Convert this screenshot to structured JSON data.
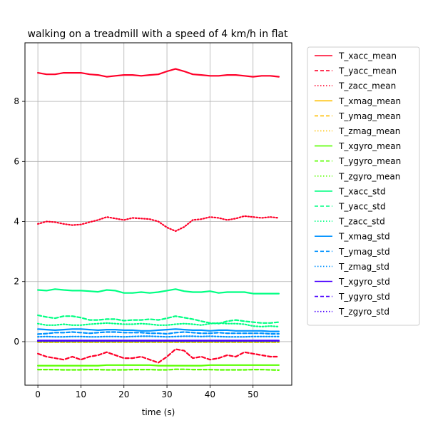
{
  "chart_data": {
    "type": "line",
    "title": "walking on a treadmill with a speed of 4 km/h in flat",
    "xlabel": "time (s)",
    "ylabel": "",
    "xlim": [
      -3,
      59
    ],
    "ylim": [
      -1.45,
      9.95
    ],
    "xticks": [
      0,
      10,
      20,
      30,
      40,
      50
    ],
    "yticks": [
      0,
      2,
      4,
      6,
      8
    ],
    "xtick_labels": [
      "0",
      "10",
      "20",
      "30",
      "40",
      "50"
    ],
    "ytick_labels": [
      "0",
      "2",
      "4",
      "6",
      "8"
    ],
    "grid": true,
    "legend_position": "outside-right",
    "x": [
      0,
      2,
      4,
      6,
      8,
      10,
      12,
      14,
      16,
      18,
      20,
      22,
      24,
      26,
      28,
      30,
      32,
      34,
      36,
      38,
      40,
      42,
      44,
      46,
      48,
      50,
      52,
      54,
      56
    ],
    "series": [
      {
        "name": "T_xacc_mean",
        "color": "#ff0029",
        "dash": "solid",
        "values": [
          8.95,
          8.9,
          8.9,
          8.95,
          8.95,
          8.95,
          8.9,
          8.88,
          8.82,
          8.85,
          8.88,
          8.88,
          8.85,
          8.88,
          8.9,
          9.0,
          9.08,
          9.0,
          8.9,
          8.88,
          8.85,
          8.85,
          8.88,
          8.88,
          8.85,
          8.82,
          8.85,
          8.85,
          8.82
        ]
      },
      {
        "name": "T_yacc_mean",
        "color": "#ff0029",
        "dash": "dashed",
        "values": [
          -0.4,
          -0.5,
          -0.55,
          -0.6,
          -0.5,
          -0.6,
          -0.5,
          -0.45,
          -0.35,
          -0.45,
          -0.55,
          -0.55,
          -0.5,
          -0.6,
          -0.7,
          -0.5,
          -0.25,
          -0.3,
          -0.55,
          -0.5,
          -0.6,
          -0.55,
          -0.45,
          -0.5,
          -0.35,
          -0.4,
          -0.45,
          -0.5,
          -0.5
        ]
      },
      {
        "name": "T_zacc_mean",
        "color": "#ff0029",
        "dash": "dotted",
        "values": [
          3.92,
          4.0,
          3.98,
          3.92,
          3.88,
          3.9,
          3.98,
          4.05,
          4.15,
          4.1,
          4.05,
          4.12,
          4.1,
          4.08,
          4.0,
          3.8,
          3.68,
          3.82,
          4.05,
          4.08,
          4.15,
          4.12,
          4.05,
          4.1,
          4.18,
          4.15,
          4.12,
          4.15,
          4.12
        ]
      },
      {
        "name": "T_xmag_mean",
        "color": "#ffbf00",
        "dash": "solid",
        "values": [
          0.0,
          0.0,
          0.0,
          0.0,
          0.0,
          0.0,
          0.0,
          0.0,
          0.0,
          0.0,
          0.0,
          0.0,
          0.0,
          0.0,
          0.0,
          0.0,
          0.0,
          0.0,
          0.0,
          0.0,
          0.0,
          0.0,
          0.0,
          0.0,
          0.0,
          0.0,
          0.0,
          0.0,
          0.0
        ]
      },
      {
        "name": "T_ymag_mean",
        "color": "#ffbf00",
        "dash": "dashed",
        "values": [
          -0.02,
          -0.02,
          -0.02,
          -0.02,
          -0.02,
          -0.02,
          -0.02,
          -0.02,
          -0.02,
          -0.02,
          -0.02,
          -0.02,
          -0.02,
          -0.02,
          -0.02,
          -0.02,
          -0.02,
          -0.02,
          -0.02,
          -0.02,
          -0.02,
          -0.02,
          -0.02,
          -0.02,
          -0.02,
          -0.02,
          -0.02,
          -0.02,
          -0.02
        ]
      },
      {
        "name": "T_zmag_mean",
        "color": "#ffbf00",
        "dash": "dotted",
        "values": [
          0.01,
          0.01,
          0.01,
          0.01,
          0.01,
          0.01,
          0.01,
          0.01,
          0.01,
          0.01,
          0.01,
          0.01,
          0.01,
          0.01,
          0.01,
          0.01,
          0.01,
          0.01,
          0.01,
          0.01,
          0.01,
          0.01,
          0.01,
          0.01,
          0.01,
          0.01,
          0.01,
          0.01,
          0.01
        ]
      },
      {
        "name": "T_xgyro_mean",
        "color": "#5aff00",
        "dash": "solid",
        "values": [
          -0.8,
          -0.8,
          -0.8,
          -0.8,
          -0.8,
          -0.8,
          -0.8,
          -0.8,
          -0.78,
          -0.78,
          -0.78,
          -0.78,
          -0.78,
          -0.78,
          -0.8,
          -0.8,
          -0.8,
          -0.8,
          -0.8,
          -0.8,
          -0.78,
          -0.78,
          -0.78,
          -0.78,
          -0.78,
          -0.78,
          -0.78,
          -0.78,
          -0.78
        ]
      },
      {
        "name": "T_ygyro_mean",
        "color": "#5aff00",
        "dash": "dashed",
        "values": [
          -0.93,
          -0.93,
          -0.93,
          -0.94,
          -0.94,
          -0.94,
          -0.93,
          -0.93,
          -0.94,
          -0.94,
          -0.94,
          -0.93,
          -0.93,
          -0.93,
          -0.94,
          -0.94,
          -0.92,
          -0.92,
          -0.93,
          -0.93,
          -0.93,
          -0.94,
          -0.94,
          -0.94,
          -0.94,
          -0.93,
          -0.93,
          -0.94,
          -0.95
        ]
      },
      {
        "name": "T_zgyro_mean",
        "color": "#5aff00",
        "dash": "dotted",
        "values": [
          0.0,
          0.0,
          0.0,
          0.0,
          0.0,
          0.0,
          0.0,
          0.0,
          0.0,
          0.0,
          0.0,
          0.0,
          0.0,
          0.0,
          0.0,
          0.0,
          0.0,
          0.0,
          0.0,
          0.0,
          0.0,
          0.0,
          0.0,
          0.0,
          0.0,
          0.0,
          0.0,
          0.0,
          0.0
        ]
      },
      {
        "name": "T_xacc_std",
        "color": "#00ff83",
        "dash": "solid",
        "values": [
          1.72,
          1.7,
          1.75,
          1.72,
          1.7,
          1.7,
          1.68,
          1.66,
          1.72,
          1.7,
          1.62,
          1.62,
          1.65,
          1.62,
          1.65,
          1.7,
          1.75,
          1.68,
          1.65,
          1.65,
          1.68,
          1.62,
          1.65,
          1.65,
          1.65,
          1.6,
          1.6,
          1.6,
          1.6
        ]
      },
      {
        "name": "T_yacc_std",
        "color": "#00ff83",
        "dash": "dashed",
        "values": [
          0.88,
          0.82,
          0.78,
          0.85,
          0.85,
          0.8,
          0.72,
          0.72,
          0.75,
          0.75,
          0.7,
          0.72,
          0.72,
          0.75,
          0.72,
          0.78,
          0.85,
          0.8,
          0.75,
          0.68,
          0.62,
          0.6,
          0.68,
          0.72,
          0.68,
          0.65,
          0.62,
          0.62,
          0.65
        ]
      },
      {
        "name": "T_zacc_std",
        "color": "#00ff83",
        "dash": "dotted",
        "values": [
          0.6,
          0.55,
          0.55,
          0.58,
          0.55,
          0.55,
          0.58,
          0.6,
          0.62,
          0.6,
          0.58,
          0.58,
          0.6,
          0.58,
          0.55,
          0.55,
          0.58,
          0.6,
          0.58,
          0.55,
          0.6,
          0.62,
          0.6,
          0.6,
          0.58,
          0.52,
          0.5,
          0.52,
          0.5
        ]
      },
      {
        "name": "T_xmag_std",
        "color": "#0092ff",
        "dash": "solid",
        "values": [
          0.42,
          0.4,
          0.38,
          0.4,
          0.42,
          0.42,
          0.4,
          0.38,
          0.4,
          0.4,
          0.38,
          0.38,
          0.36,
          0.36,
          0.38,
          0.4,
          0.42,
          0.4,
          0.38,
          0.38,
          0.36,
          0.38,
          0.38,
          0.36,
          0.36,
          0.36,
          0.36,
          0.34,
          0.34
        ]
      },
      {
        "name": "T_ymag_std",
        "color": "#0092ff",
        "dash": "dashed",
        "values": [
          0.25,
          0.27,
          0.3,
          0.3,
          0.32,
          0.3,
          0.28,
          0.3,
          0.32,
          0.32,
          0.3,
          0.3,
          0.3,
          0.28,
          0.28,
          0.26,
          0.3,
          0.32,
          0.3,
          0.28,
          0.28,
          0.3,
          0.28,
          0.28,
          0.28,
          0.28,
          0.28,
          0.26,
          0.26
        ]
      },
      {
        "name": "T_zmag_std",
        "color": "#0092ff",
        "dash": "dotted",
        "values": [
          0.16,
          0.17,
          0.16,
          0.16,
          0.17,
          0.17,
          0.16,
          0.16,
          0.17,
          0.17,
          0.16,
          0.17,
          0.18,
          0.18,
          0.17,
          0.16,
          0.17,
          0.18,
          0.18,
          0.17,
          0.18,
          0.17,
          0.16,
          0.16,
          0.16,
          0.17,
          0.17,
          0.17,
          0.17
        ]
      },
      {
        "name": "T_xgyro_std",
        "color": "#4a00ff",
        "dash": "solid",
        "values": [
          0.04,
          0.04,
          0.04,
          0.04,
          0.04,
          0.04,
          0.04,
          0.04,
          0.04,
          0.04,
          0.04,
          0.04,
          0.04,
          0.04,
          0.04,
          0.04,
          0.04,
          0.04,
          0.04,
          0.04,
          0.04,
          0.04,
          0.04,
          0.04,
          0.04,
          0.04,
          0.04,
          0.04,
          0.04
        ]
      },
      {
        "name": "T_ygyro_std",
        "color": "#4a00ff",
        "dash": "dashed",
        "values": [
          0.03,
          0.03,
          0.03,
          0.03,
          0.03,
          0.03,
          0.03,
          0.03,
          0.03,
          0.03,
          0.03,
          0.03,
          0.03,
          0.03,
          0.03,
          0.03,
          0.03,
          0.03,
          0.03,
          0.03,
          0.03,
          0.03,
          0.03,
          0.03,
          0.03,
          0.03,
          0.03,
          0.03,
          0.03
        ]
      },
      {
        "name": "T_zgyro_std",
        "color": "#4a00ff",
        "dash": "dotted",
        "values": [
          0.02,
          0.02,
          0.02,
          0.02,
          0.02,
          0.02,
          0.02,
          0.02,
          0.02,
          0.02,
          0.02,
          0.02,
          0.02,
          0.02,
          0.02,
          0.02,
          0.02,
          0.02,
          0.02,
          0.02,
          0.02,
          0.02,
          0.02,
          0.02,
          0.02,
          0.02,
          0.02,
          0.02,
          0.02
        ]
      }
    ]
  }
}
